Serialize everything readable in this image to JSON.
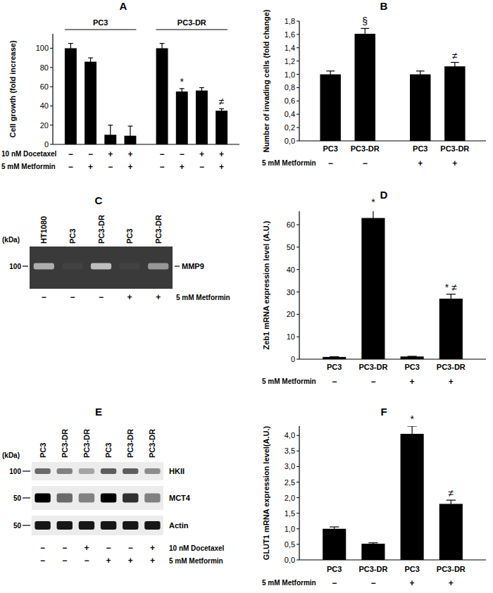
{
  "chart_data": [
    {
      "type": "bar",
      "title": "A",
      "ylabel": "Cell growth (fold increase)",
      "categories": [
        null,
        null,
        null,
        null,
        null,
        null,
        null,
        null
      ],
      "values": [
        100,
        86,
        10,
        9,
        100,
        55,
        56,
        35
      ],
      "errors": [
        5,
        4,
        10,
        10,
        5,
        3,
        3,
        2
      ],
      "annotations": [
        null,
        null,
        null,
        null,
        null,
        "*",
        null,
        "≠"
      ],
      "groups": [
        {
          "label": "PC3"
        },
        {
          "label": "PC3-DR"
        }
      ],
      "conditions": [
        {
          "label": "10 nM Docetaxel",
          "values": [
            "−",
            "−",
            "+",
            "+",
            "−",
            "−",
            "+",
            "+"
          ]
        },
        {
          "label": "5 mM Metformin",
          "values": [
            "−",
            "+",
            "−",
            "+",
            "−",
            "+",
            "−",
            "+"
          ]
        }
      ],
      "color": "#000000",
      "ylim": [
        0,
        115
      ],
      "yticks": [
        0,
        20,
        40,
        60,
        80,
        100
      ]
    },
    {
      "type": "bar",
      "title": "B",
      "ylabel": "Number of invading cells (fold change)",
      "categories": [
        "PC3",
        "PC3-DR",
        "PC3",
        "PC3-DR"
      ],
      "values": [
        1,
        1.61,
        1,
        1.12
      ],
      "errors": [
        0.05,
        0.08,
        0.05,
        0.06
      ],
      "annotations": [
        null,
        "§",
        null,
        "≠"
      ],
      "conditions": [
        {
          "label": "5 mM Metformin",
          "values": [
            "−",
            "−",
            "+",
            "+"
          ]
        }
      ],
      "color": "#000000",
      "ylim": [
        0,
        1.8
      ],
      "yticks": [
        {
          "value": 0,
          "label": "0,0"
        },
        {
          "value": 0.2,
          "label": "0,2"
        },
        {
          "value": 0.4,
          "label": "0,4"
        },
        {
          "value": 0.6,
          "label": "0,6"
        },
        {
          "value": 0.8,
          "label": "0,8"
        },
        {
          "value": 1,
          "label": "1,0"
        },
        {
          "value": 1.2,
          "label": "1,2"
        },
        {
          "value": 1.4,
          "label": "1,4"
        },
        {
          "value": 1.6,
          "label": "1,6"
        },
        {
          "value": 1.8,
          "label": "1,8"
        }
      ]
    },
    {
      "type": "bar",
      "title": "D",
      "ylabel": "Zeb1 mRNA expression level (A.U.)",
      "categories": [
        "PC3",
        "PC3-DR",
        "PC3",
        "PC3-DR"
      ],
      "values": [
        1,
        63,
        1.2,
        27
      ],
      "errors": [
        0.1,
        4,
        0.1,
        2
      ],
      "annotations": [
        null,
        "*",
        null,
        "* ≠"
      ],
      "conditions": [
        {
          "label": "5 mM Metformin",
          "values": [
            "−",
            "−",
            "+",
            "+"
          ]
        }
      ],
      "color": "#000000",
      "ylim": [
        0,
        66
      ],
      "yticks": [
        0,
        10,
        20,
        30,
        40,
        50,
        60
      ]
    },
    {
      "type": "bar",
      "title": "F",
      "ylabel": "GLUT1 mRNA expression level(A.U.)",
      "categories": [
        "PC3",
        "PC3-DR",
        "PC3",
        "PC3-DR"
      ],
      "values": [
        1,
        0.52,
        4.05,
        1.8
      ],
      "errors": [
        0.06,
        0.03,
        0.25,
        0.12
      ],
      "annotations": [
        null,
        null,
        "*",
        "≠"
      ],
      "conditions": [
        {
          "label": "5 mM Metformin",
          "values": [
            "−",
            "−",
            "+",
            "+"
          ]
        }
      ],
      "color": "#000000",
      "ylim": [
        0,
        4.3
      ],
      "yticks": [
        {
          "value": 0,
          "label": "0,0"
        },
        {
          "value": 0.5,
          "label": "0,5"
        },
        {
          "value": 1,
          "label": "1,0"
        },
        {
          "value": 1.5,
          "label": "1,5"
        },
        {
          "value": 2,
          "label": "2,0"
        },
        {
          "value": 2.5,
          "label": "2,5"
        },
        {
          "value": 3,
          "label": "3,0"
        },
        {
          "value": 3.5,
          "label": "3,5"
        },
        {
          "value": 4,
          "label": "4,0"
        }
      ]
    }
  ],
  "blots": [
    {
      "title": "C",
      "lanes": [
        "HT1080",
        "PC3",
        "PC3-DR",
        "PC3",
        "PC3-DR"
      ],
      "unit": "(kDa)",
      "rows": [
        {
          "label": "MMP9",
          "marker": 100,
          "values": [
            0.75,
            0.05,
            0.85,
            0.05,
            0.6
          ]
        }
      ],
      "conditions": [
        {
          "label": "5 mM Metformin",
          "values": [
            "−",
            "−",
            "−",
            "+",
            "+"
          ]
        }
      ]
    },
    {
      "title": "E",
      "lanes": [
        "PC3",
        "PC3-DR",
        "PC3-DR",
        "PC3",
        "PC3-DR",
        "PC3-DR"
      ],
      "unit": "(kDa)",
      "rows": [
        {
          "label": "HKII",
          "marker": 100,
          "values": [
            0.55,
            0.45,
            0.3,
            0.6,
            0.6,
            0.4
          ]
        },
        {
          "label": "MCT4",
          "marker": 50,
          "values": [
            1,
            0.55,
            0.45,
            1,
            0.8,
            0.45
          ]
        },
        {
          "label": "Actin",
          "marker": 50,
          "values": [
            0.9,
            0.9,
            0.9,
            0.9,
            0.9,
            0.9
          ]
        }
      ],
      "conditions": [
        {
          "label": "10 nM Docetaxel",
          "values": [
            "−",
            "−",
            "+",
            "−",
            "−",
            "+"
          ]
        },
        {
          "label": "5 mM Metformin",
          "values": [
            "−",
            "−",
            "−",
            "+",
            "+",
            "+"
          ]
        }
      ]
    }
  ]
}
